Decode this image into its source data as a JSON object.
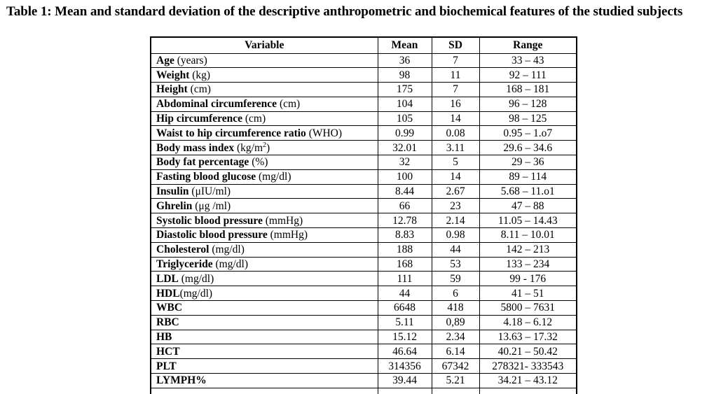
{
  "title": "Table 1: Mean and standard deviation of the descriptive anthropometric and biochemical features of the studied subjects",
  "table": {
    "headers": [
      "Variable",
      "Mean",
      "SD",
      "Range"
    ],
    "rows": [
      {
        "name": "Age",
        "unit": " (years)",
        "unit_sup": "",
        "unit_close": "",
        "mean": "36",
        "sd": "7",
        "range": "33 – 43"
      },
      {
        "name": "Weight",
        "unit": " (kg)",
        "unit_sup": "",
        "unit_close": "",
        "mean": "98",
        "sd": "11",
        "range": "92 – 111"
      },
      {
        "name": "Height",
        "unit": " (cm)",
        "unit_sup": "",
        "unit_close": "",
        "mean": "175",
        "sd": "7",
        "range": "168 – 181"
      },
      {
        "name": "Abdominal circumference",
        "unit": " (cm)",
        "unit_sup": "",
        "unit_close": "",
        "mean": "104",
        "sd": "16",
        "range": "96 – 128"
      },
      {
        "name": "Hip circumference",
        "unit": " (cm)",
        "unit_sup": "",
        "unit_close": "",
        "mean": "105",
        "sd": "14",
        "range": "98 – 125"
      },
      {
        "name": "Waist to hip circumference ratio",
        "unit": " (WHO)",
        "unit_sup": "",
        "unit_close": "",
        "mean": "0.99",
        "sd": "0.08",
        "range": "0.95 – 1.o7"
      },
      {
        "name": "Body mass index",
        "unit": " (kg/m",
        "unit_sup": "2",
        "unit_close": ")",
        "mean": "32.01",
        "sd": "3.11",
        "range": "29.6 – 34.6"
      },
      {
        "name": "Body fat percentage",
        "unit": " (%)",
        "unit_sup": "",
        "unit_close": "",
        "mean": "32",
        "sd": "5",
        "range": "29 – 36"
      },
      {
        "name": "Fasting blood glucose",
        "unit": " (mg/dl)",
        "unit_sup": "",
        "unit_close": "",
        "mean": "100",
        "sd": "14",
        "range": "89 – 114"
      },
      {
        "name": "Insulin",
        "unit": " (μIU/ml)",
        "unit_sup": "",
        "unit_close": "",
        "mean": "8.44",
        "sd": "2.67",
        "range": "5.68 – 11.o1"
      },
      {
        "name": "Ghrelin",
        "unit": " (μg /ml)",
        "unit_sup": "",
        "unit_close": "",
        "mean": "66",
        "sd": "23",
        "range": "47 – 88"
      },
      {
        "name": "Systolic blood pressure",
        "unit": " (mmHg)",
        "unit_sup": "",
        "unit_close": "",
        "mean": "12.78",
        "sd": "2.14",
        "range": "11.05 – 14.43"
      },
      {
        "name": "Diastolic blood pressure",
        "unit": " (mmHg)",
        "unit_sup": "",
        "unit_close": "",
        "mean": "8.83",
        "sd": "0.98",
        "range": "8.11 – 10.01"
      },
      {
        "name": "Cholesterol",
        "unit": " (mg/dl)",
        "unit_sup": "",
        "unit_close": "",
        "mean": "188",
        "sd": "44",
        "range": "142 – 213"
      },
      {
        "name": "Triglyceride",
        "unit": " (mg/dl)",
        "unit_sup": "",
        "unit_close": "",
        "mean": "168",
        "sd": "53",
        "range": "133 – 234"
      },
      {
        "name": "LDL",
        "unit": " (mg/dl)",
        "unit_sup": "",
        "unit_close": "",
        "mean": "111",
        "sd": "59",
        "range": "99 - 176"
      },
      {
        "name": "HDL",
        "unit": "(mg/dl)",
        "unit_sup": "",
        "unit_close": "",
        "mean": "44",
        "sd": "6",
        "range": "41 – 51"
      },
      {
        "name": "WBC",
        "unit": "",
        "unit_sup": "",
        "unit_close": "",
        "mean": "6648",
        "sd": "418",
        "range": "5800 – 7631"
      },
      {
        "name": "RBC",
        "unit": "",
        "unit_sup": "",
        "unit_close": "",
        "mean": "5.11",
        "sd": "0,89",
        "range": "4.18 – 6.12"
      },
      {
        "name": "HB",
        "unit": "",
        "unit_sup": "",
        "unit_close": "",
        "mean": "15.12",
        "sd": "2.34",
        "range": "13.63 – 17.32"
      },
      {
        "name": "HCT",
        "unit": "",
        "unit_sup": "",
        "unit_close": "",
        "mean": "46.64",
        "sd": "6.14",
        "range": "40.21 – 50.42"
      },
      {
        "name": "PLT",
        "unit": "",
        "unit_sup": "",
        "unit_close": "",
        "mean": "314356",
        "sd": "67342",
        "range": "278321- 333543"
      },
      {
        "name": "LYMPH%",
        "unit": "",
        "unit_sup": "",
        "unit_close": "",
        "mean": "39.44",
        "sd": "5.21",
        "range": "34.21 – 43.12"
      }
    ]
  }
}
